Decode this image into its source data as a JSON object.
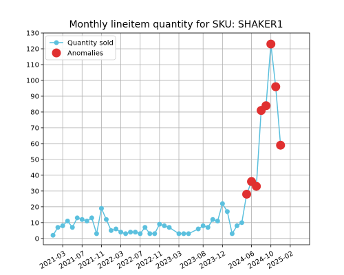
{
  "chart_data": {
    "type": "line",
    "title": "Monthly lineitem quantity for SKU: SHAKER1",
    "xlabel": "",
    "ylabel": "",
    "ylim": [
      -4,
      130
    ],
    "yticks": [
      0,
      10,
      20,
      30,
      40,
      50,
      60,
      70,
      80,
      90,
      100,
      110,
      120,
      130
    ],
    "xlim": [
      "2020-11",
      "2025-06"
    ],
    "xticks": [
      "2021-03",
      "2021-07",
      "2021-11",
      "2022-03",
      "2022-07",
      "2022-11",
      "2023-03",
      "2023-08",
      "2023-12",
      "2024-06",
      "2024-10",
      "2025-02"
    ],
    "grid": true,
    "legend": {
      "placement": "upper-left",
      "entries": [
        "Quantity sold",
        "Anomalies"
      ]
    },
    "series": [
      {
        "name": "Quantity sold",
        "color": "#5bc0de",
        "marker": "circle",
        "points": [
          [
            "2021-01",
            2
          ],
          [
            "2021-02",
            7
          ],
          [
            "2021-03",
            8
          ],
          [
            "2021-04",
            11
          ],
          [
            "2021-05",
            7
          ],
          [
            "2021-06",
            13
          ],
          [
            "2021-07",
            12
          ],
          [
            "2021-08",
            11
          ],
          [
            "2021-09",
            13
          ],
          [
            "2021-10",
            3
          ],
          [
            "2021-11",
            19
          ],
          [
            "2021-12",
            12
          ],
          [
            "2022-01",
            5
          ],
          [
            "2022-02",
            6
          ],
          [
            "2022-03",
            4
          ],
          [
            "2022-04",
            3
          ],
          [
            "2022-05",
            4
          ],
          [
            "2022-06",
            4
          ],
          [
            "2022-07",
            3
          ],
          [
            "2022-08",
            7
          ],
          [
            "2022-09",
            3
          ],
          [
            "2022-10",
            3
          ],
          [
            "2022-11",
            9
          ],
          [
            "2022-12",
            8
          ],
          [
            "2023-01",
            7
          ],
          [
            "2023-03",
            3
          ],
          [
            "2023-04",
            3
          ],
          [
            "2023-05",
            3
          ],
          [
            "2023-07",
            6
          ],
          [
            "2023-08",
            8
          ],
          [
            "2023-09",
            7
          ],
          [
            "2023-10",
            12
          ],
          [
            "2023-11",
            11
          ],
          [
            "2023-12",
            22
          ],
          [
            "2024-01",
            17
          ],
          [
            "2024-02",
            3
          ],
          [
            "2024-03",
            8
          ],
          [
            "2024-04",
            10
          ],
          [
            "2024-05",
            28
          ],
          [
            "2024-06",
            36
          ],
          [
            "2024-07",
            33
          ],
          [
            "2024-08",
            81
          ],
          [
            "2024-09",
            84
          ],
          [
            "2024-10",
            123
          ],
          [
            "2024-11",
            96
          ],
          [
            "2024-12",
            59
          ]
        ]
      },
      {
        "name": "Anomalies",
        "color": "#e03030",
        "marker": "circle",
        "points": [
          [
            "2024-05",
            28
          ],
          [
            "2024-06",
            36
          ],
          [
            "2024-07",
            33
          ],
          [
            "2024-08",
            81
          ],
          [
            "2024-09",
            84
          ],
          [
            "2024-10",
            123
          ],
          [
            "2024-11",
            96
          ],
          [
            "2024-12",
            59
          ]
        ]
      }
    ]
  }
}
